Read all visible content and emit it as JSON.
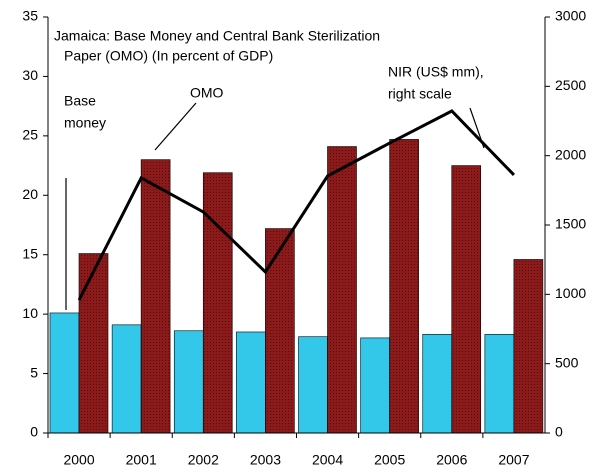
{
  "chart_data": {
    "type": "bar",
    "title_lines": [
      "Jamaica: Base Money and Central Bank Sterilization",
      "Paper (OMO) (In percent of GDP)"
    ],
    "categories": [
      "2000",
      "2001",
      "2002",
      "2003",
      "2004",
      "2005",
      "2006",
      "2007"
    ],
    "series": [
      {
        "name": "Base money",
        "type": "bar",
        "color": "#33c8ea",
        "values": [
          10.1,
          9.1,
          8.6,
          8.5,
          8.1,
          8.0,
          8.3,
          8.3
        ]
      },
      {
        "name": "OMO",
        "type": "bar",
        "color": "#8b1a1a",
        "values": [
          15.1,
          23.0,
          21.9,
          17.2,
          24.1,
          24.7,
          22.5,
          14.6
        ]
      },
      {
        "name": "NIR (US$ mm), right scale",
        "type": "line",
        "axis": "y2",
        "color": "#000000",
        "values": [
          959,
          1839,
          1594,
          1161,
          1853,
          2091,
          2322,
          1861
        ]
      }
    ],
    "annotations": [
      {
        "lines": [
          "Base",
          "money"
        ]
      },
      {
        "lines": [
          "OMO"
        ]
      },
      {
        "lines": [
          "NIR (US$ mm),",
          "right scale"
        ]
      }
    ],
    "ylim": [
      0,
      35
    ],
    "yticks": [
      0,
      5,
      10,
      15,
      20,
      25,
      30,
      35
    ],
    "y2lim": [
      0,
      3000
    ],
    "y2ticks": [
      0,
      500,
      1000,
      1500,
      2000,
      2500,
      3000
    ]
  }
}
